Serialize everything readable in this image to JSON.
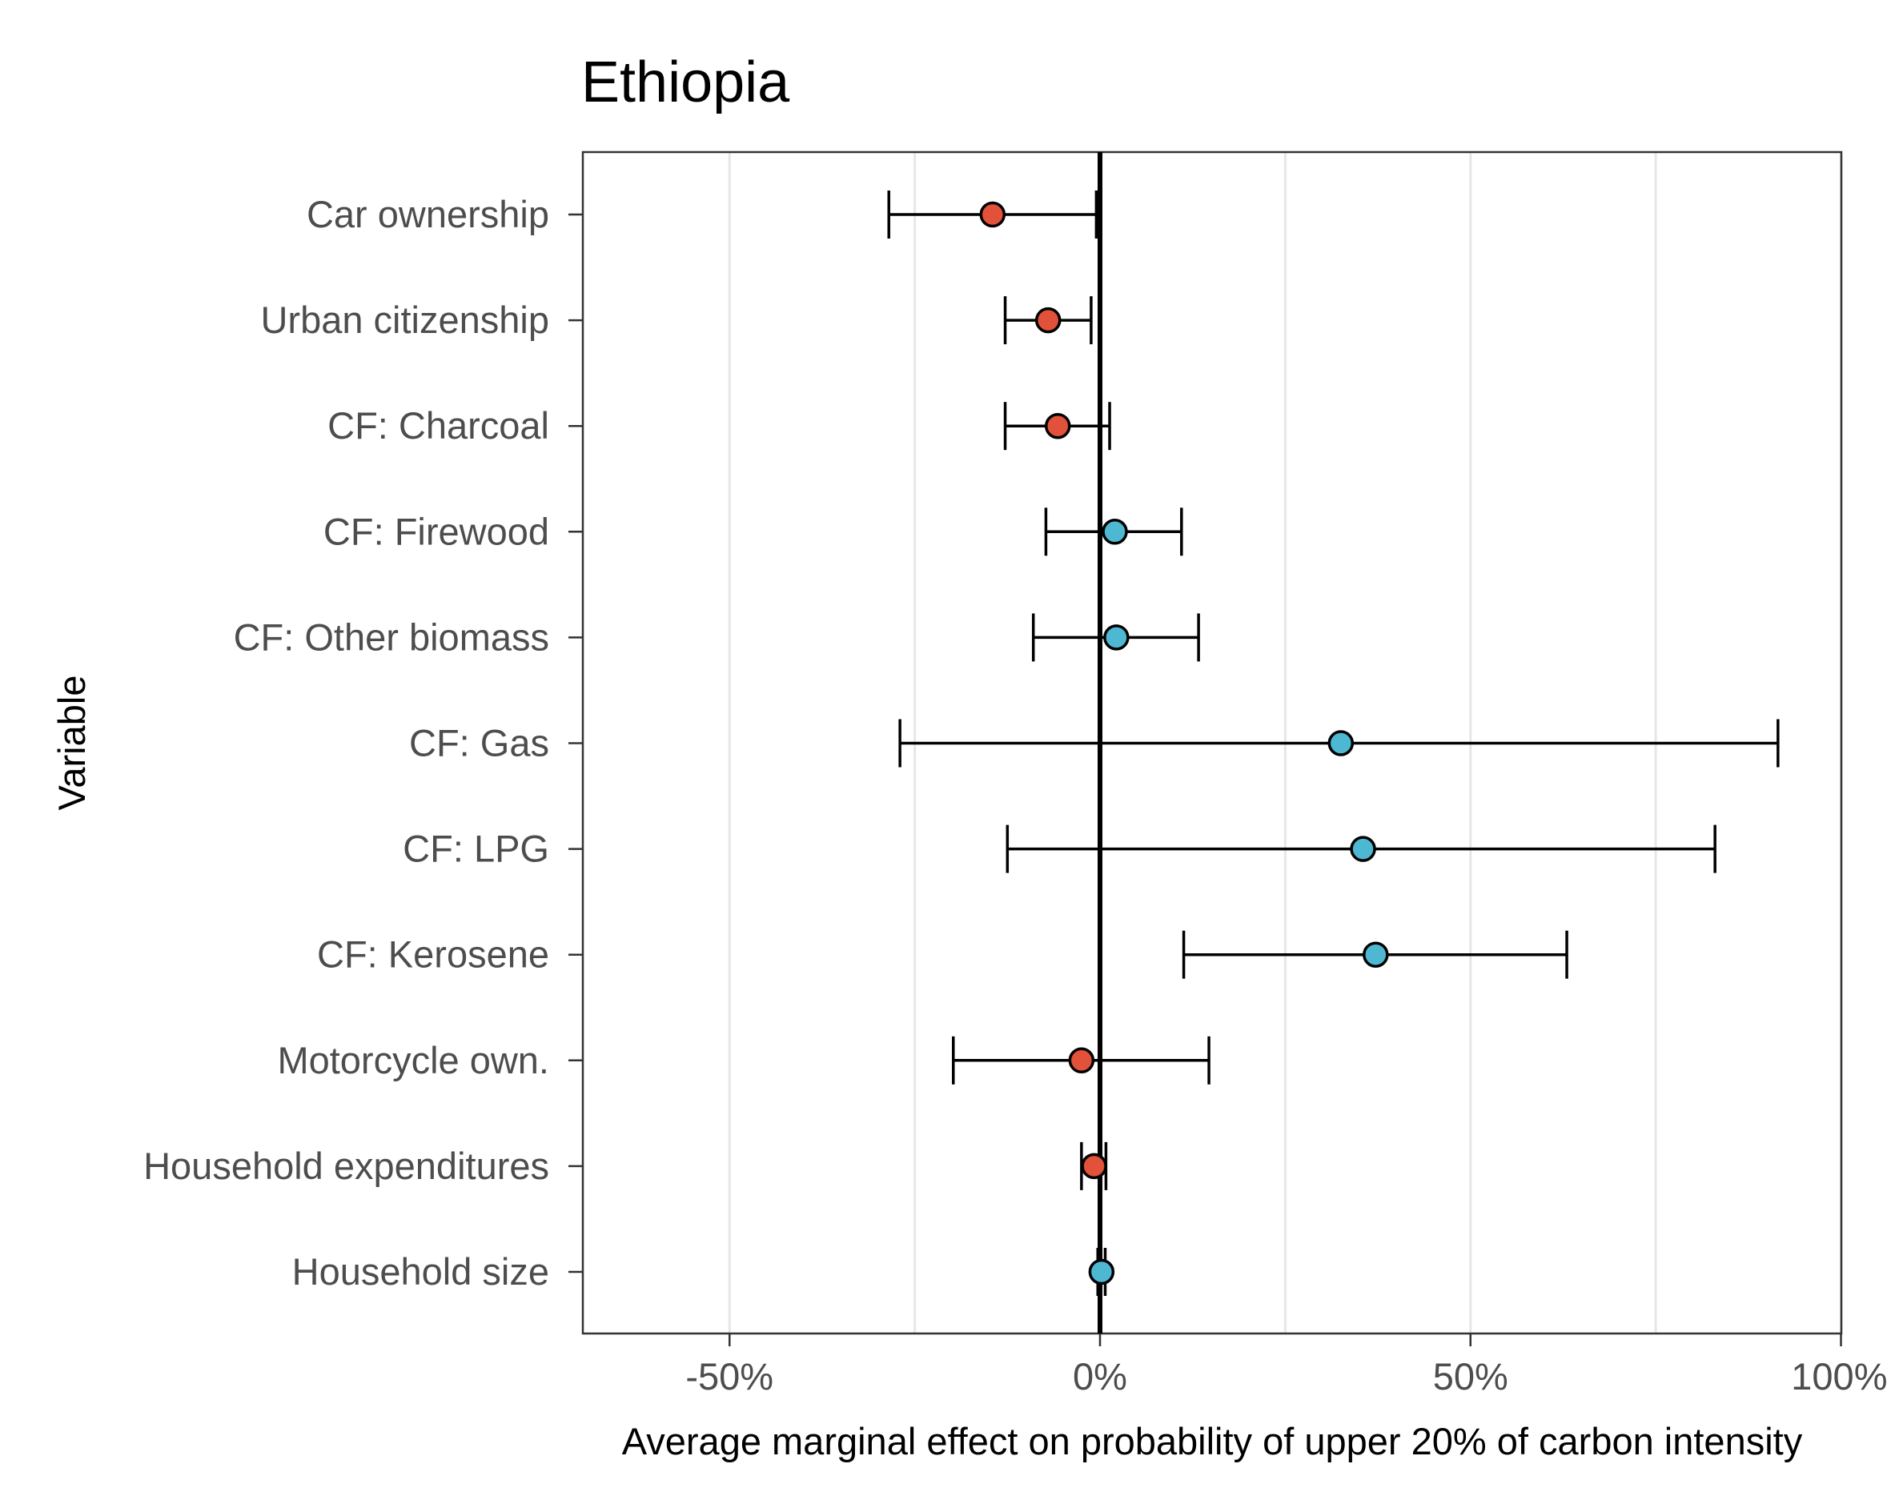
{
  "chart_data": {
    "type": "scatter",
    "subtype": "coefficient-plot-with-error-bars",
    "title": "Ethiopia",
    "xlabel": "Average marginal effect on probability of upper 20% of carbon intensity",
    "ylabel": "Variable",
    "xlim": [
      -0.7,
      1.0
    ],
    "x_ticks": [
      -0.5,
      0,
      0.5,
      1.0
    ],
    "x_tick_labels": [
      "-50%",
      "0%",
      "50%",
      "100%"
    ],
    "reference_line_x": 0,
    "grid": "vertical major and minor lines",
    "colors": {
      "negative": "#e2513a",
      "positive": "#4eb8d3",
      "stroke": "#000000",
      "grid": "#e6e6e6"
    },
    "points": [
      {
        "label": "Car ownership",
        "estimate": -0.145,
        "low": -0.285,
        "high": -0.005,
        "sign": "negative"
      },
      {
        "label": "Urban citizenship",
        "estimate": -0.07,
        "low": -0.128,
        "high": -0.012,
        "sign": "negative"
      },
      {
        "label": "CF: Charcoal",
        "estimate": -0.057,
        "low": -0.128,
        "high": 0.013,
        "sign": "negative"
      },
      {
        "label": "CF: Firewood",
        "estimate": 0.02,
        "low": -0.073,
        "high": 0.11,
        "sign": "positive"
      },
      {
        "label": "CF: Other biomass",
        "estimate": 0.022,
        "low": -0.09,
        "high": 0.133,
        "sign": "positive"
      },
      {
        "label": "CF: Gas",
        "estimate": 0.325,
        "low": -0.27,
        "high": 0.915,
        "sign": "positive"
      },
      {
        "label": "CF: LPG",
        "estimate": 0.355,
        "low": -0.125,
        "high": 0.83,
        "sign": "positive"
      },
      {
        "label": "CF: Kerosene",
        "estimate": 0.372,
        "low": 0.113,
        "high": 0.63,
        "sign": "positive"
      },
      {
        "label": "Motorcycle own.",
        "estimate": -0.025,
        "low": -0.198,
        "high": 0.147,
        "sign": "negative"
      },
      {
        "label": "Household expenditures",
        "estimate": -0.008,
        "low": -0.025,
        "high": 0.008,
        "sign": "negative"
      },
      {
        "label": "Household size",
        "estimate": 0.002,
        "low": -0.003,
        "high": 0.007,
        "sign": "positive"
      }
    ]
  }
}
